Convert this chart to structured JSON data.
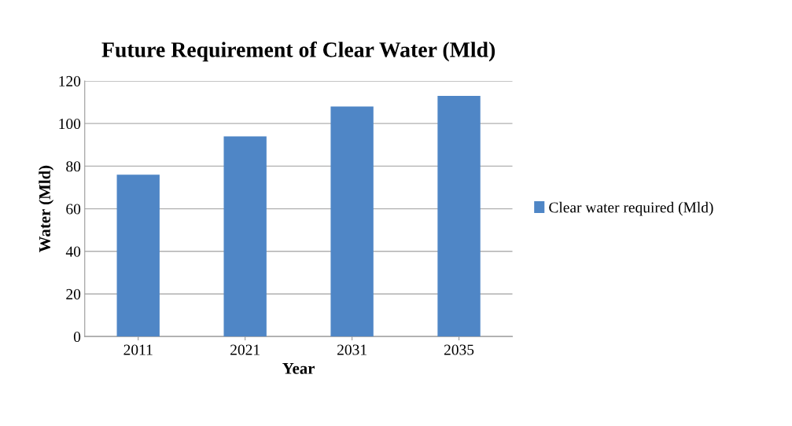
{
  "chart_data": {
    "type": "bar",
    "title": "Future Requirement of Clear Water (Mld)",
    "xlabel": "Year",
    "ylabel": "Water (Mld)",
    "categories": [
      "2011",
      "2021",
      "2031",
      "2035"
    ],
    "series": [
      {
        "name": "Clear water required (Mld)",
        "color": "#4f86c6",
        "values": [
          76,
          94,
          108,
          113
        ]
      }
    ],
    "ylim": [
      0,
      120
    ],
    "yticks": [
      0,
      20,
      40,
      60,
      80,
      100,
      120
    ],
    "grid": "y",
    "legend": "right"
  }
}
